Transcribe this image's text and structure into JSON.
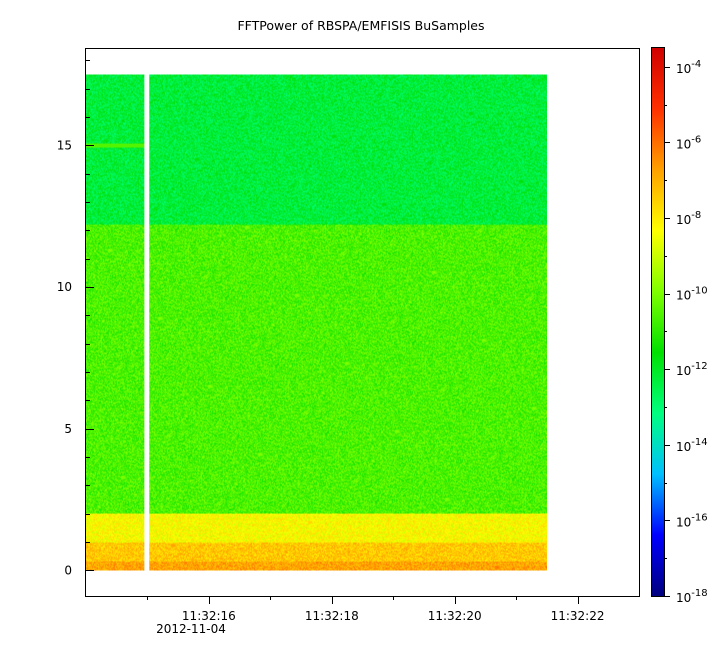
{
  "chart_data": {
    "type": "heatmap",
    "title": "FFTPower of RBSPA/EMFISIS  BuSamples",
    "xlabel": "",
    "ylabel": "",
    "x_ticks": [
      "11:32:16",
      "11:32:18",
      "11:32:20",
      "11:32:22"
    ],
    "x_tick_sublabel": "2012-11-04",
    "x_tick_values_sec": [
      16,
      18,
      20,
      22
    ],
    "xlim_sec": [
      14.0,
      23.0
    ],
    "data_x_range_sec": [
      14.0,
      21.5
    ],
    "gap_x_sec": [
      14.95,
      15.03
    ],
    "y_ticks": [
      0,
      5,
      10,
      15
    ],
    "ylim": [
      -0.9,
      18.4
    ],
    "data_y_range": [
      0,
      17.5
    ],
    "colorbar": {
      "scale": "log",
      "range_exponent": [
        -18,
        -3.5
      ],
      "tick_exponents": [
        -4,
        -6,
        -8,
        -10,
        -12,
        -14,
        -16,
        -18
      ],
      "tick_base": "10",
      "colors": [
        "#00007f",
        "#0000ff",
        "#00bfff",
        "#00ff80",
        "#00e000",
        "#80ff00",
        "#ffff00",
        "#ffa000",
        "#ff3000",
        "#d00000"
      ]
    },
    "bands": [
      {
        "y_from": 0,
        "y_to": 0.3,
        "log10_power": -6.8
      },
      {
        "y_from": 0.3,
        "y_to": 1.0,
        "log10_power": -7.4
      },
      {
        "y_from": 1.0,
        "y_to": 2.0,
        "log10_power": -8.3
      },
      {
        "y_from": 2.0,
        "y_to": 12.2,
        "log10_power": -10.6
      },
      {
        "y_from": 12.2,
        "y_to": 17.5,
        "log10_power": -12.3
      }
    ],
    "line_feature": {
      "y": 15.0,
      "x_from": 14.0,
      "x_to": 15.0,
      "log10_power": -10.5
    }
  }
}
